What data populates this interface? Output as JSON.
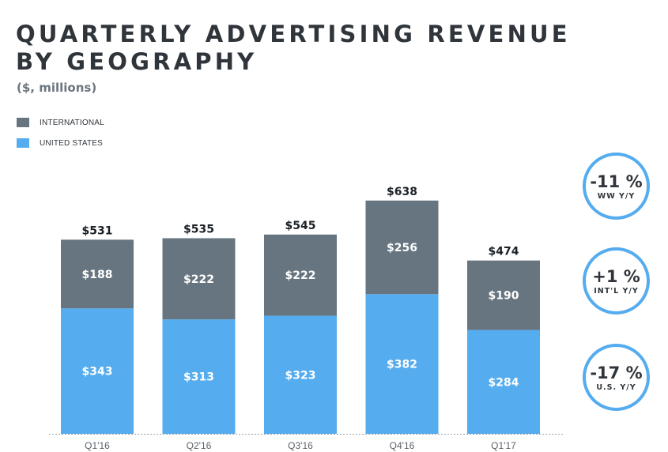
{
  "chart_data": {
    "type": "bar",
    "stacked": true,
    "title_line1": "QUARTERLY ADVERTISING REVENUE",
    "title_line2": "BY GEOGRAPHY",
    "subtitle": "($, millions)",
    "categories": [
      "Q1'16",
      "Q2'16",
      "Q3'16",
      "Q4'16",
      "Q1'17"
    ],
    "series": [
      {
        "name": "UNITED STATES",
        "key": "us",
        "color": "#55acee",
        "values": [
          343,
          313,
          323,
          382,
          284
        ],
        "value_labels": [
          "$343",
          "$313",
          "$323",
          "$382",
          "$284"
        ]
      },
      {
        "name": "INTERNATIONAL",
        "key": "intl",
        "color": "#66757f",
        "values": [
          188,
          222,
          222,
          256,
          190
        ],
        "value_labels": [
          "$188",
          "$222",
          "$222",
          "$256",
          "$190"
        ]
      }
    ],
    "totals": [
      531,
      535,
      545,
      638,
      474
    ],
    "total_labels": [
      "$531",
      "$535",
      "$545",
      "$638",
      "$474"
    ],
    "legend": [
      {
        "label": "INTERNATIONAL",
        "color": "#66757f"
      },
      {
        "label": "UNITED STATES",
        "color": "#55acee"
      }
    ],
    "legend_position": "top-left",
    "ylim": [
      0,
      700
    ],
    "grid": false
  },
  "callouts": [
    {
      "value": "-11 %",
      "label": "WW Y/Y"
    },
    {
      "value": "+1 %",
      "label": "INT'L Y/Y"
    },
    {
      "value": "-17 %",
      "label": "U.S. Y/Y"
    }
  ],
  "colors": {
    "title": "#2f353b",
    "subtitle": "#6b757f",
    "accent": "#55acee",
    "international": "#66757f"
  }
}
